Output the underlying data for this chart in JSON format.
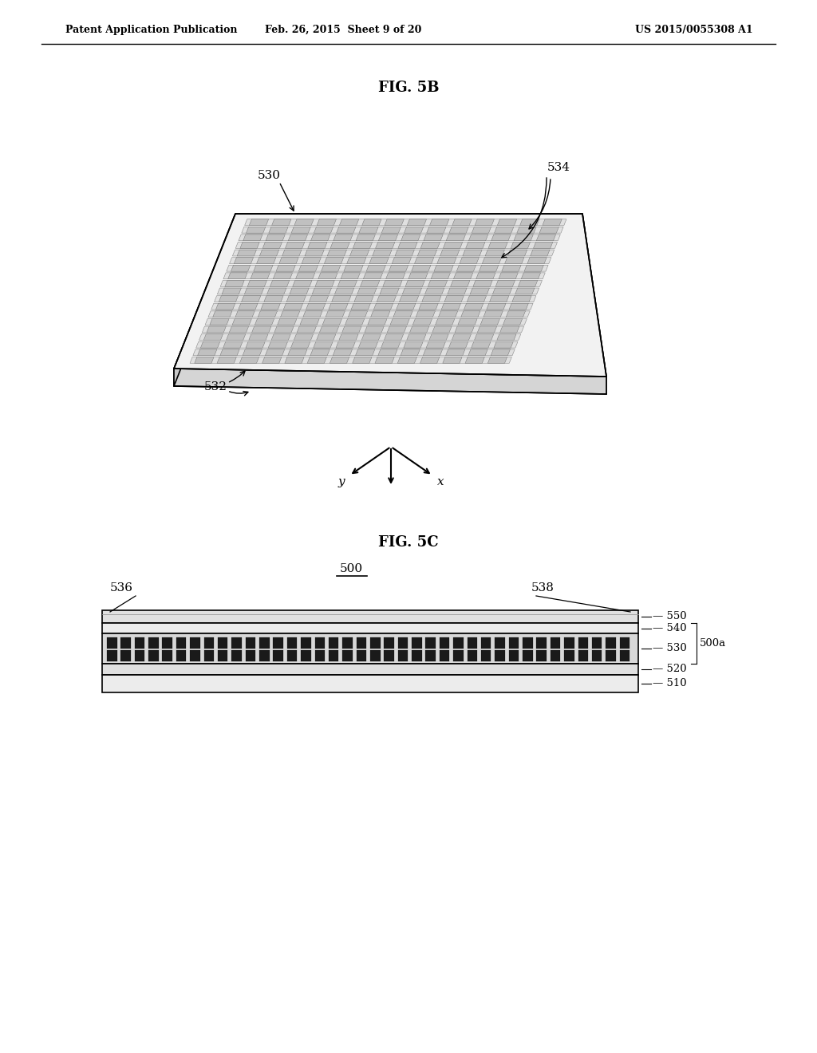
{
  "bg_color": "#ffffff",
  "header_left": "Patent Application Publication",
  "header_mid": "Feb. 26, 2015  Sheet 9 of 20",
  "header_right": "US 2015/0055308 A1",
  "fig5b_title": "FIG. 5B",
  "fig5c_title": "FIG. 5C",
  "label_530": "530",
  "label_532": "532",
  "label_534": "534",
  "label_500": "500",
  "label_536": "536",
  "label_538": "538",
  "label_550": "550",
  "label_540": "540",
  "label_530c": "530",
  "label_520": "520",
  "label_510": "510",
  "label_500a": "500a",
  "line_color": "#000000",
  "fill_color": "#e8e8e8",
  "dark_fill": "#1a1a1a"
}
